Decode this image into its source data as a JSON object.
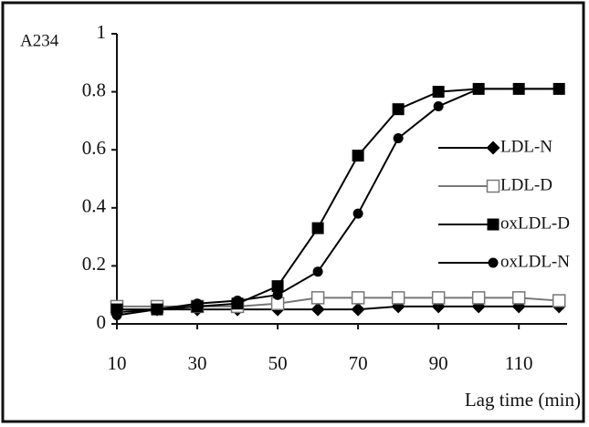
{
  "chart_data": {
    "type": "line",
    "x_label": "Lag time (min)",
    "y_label": "A234",
    "x": [
      10,
      20,
      30,
      40,
      50,
      60,
      70,
      80,
      90,
      100,
      110,
      120
    ],
    "xlim": [
      10,
      122
    ],
    "xticks": [
      10,
      30,
      50,
      70,
      90,
      110
    ],
    "ylim": [
      0,
      1
    ],
    "yticks": [
      0,
      0.2,
      0.4,
      0.6,
      0.8,
      1
    ],
    "legend": "right",
    "series": [
      {
        "name": "LDL-N",
        "color": "#000000",
        "marker": "diamond",
        "values": [
          0.04,
          0.05,
          0.05,
          0.05,
          0.05,
          0.05,
          0.05,
          0.06,
          0.06,
          0.06,
          0.06,
          0.06
        ]
      },
      {
        "name": "LDL-D",
        "color": "#777777",
        "marker": "open-square",
        "values": [
          0.06,
          0.06,
          0.06,
          0.06,
          0.07,
          0.09,
          0.09,
          0.09,
          0.09,
          0.09,
          0.09,
          0.08
        ]
      },
      {
        "name": "oxLDL-D",
        "color": "#000000",
        "marker": "square",
        "values": [
          0.05,
          0.05,
          0.06,
          0.07,
          0.13,
          0.33,
          0.58,
          0.74,
          0.8,
          0.81,
          0.81,
          0.81
        ]
      },
      {
        "name": "oxLDL-N",
        "color": "#000000",
        "marker": "circle",
        "values": [
          0.03,
          0.05,
          0.07,
          0.08,
          0.1,
          0.18,
          0.38,
          0.64,
          0.75,
          0.81,
          0.81,
          0.81
        ]
      }
    ]
  }
}
